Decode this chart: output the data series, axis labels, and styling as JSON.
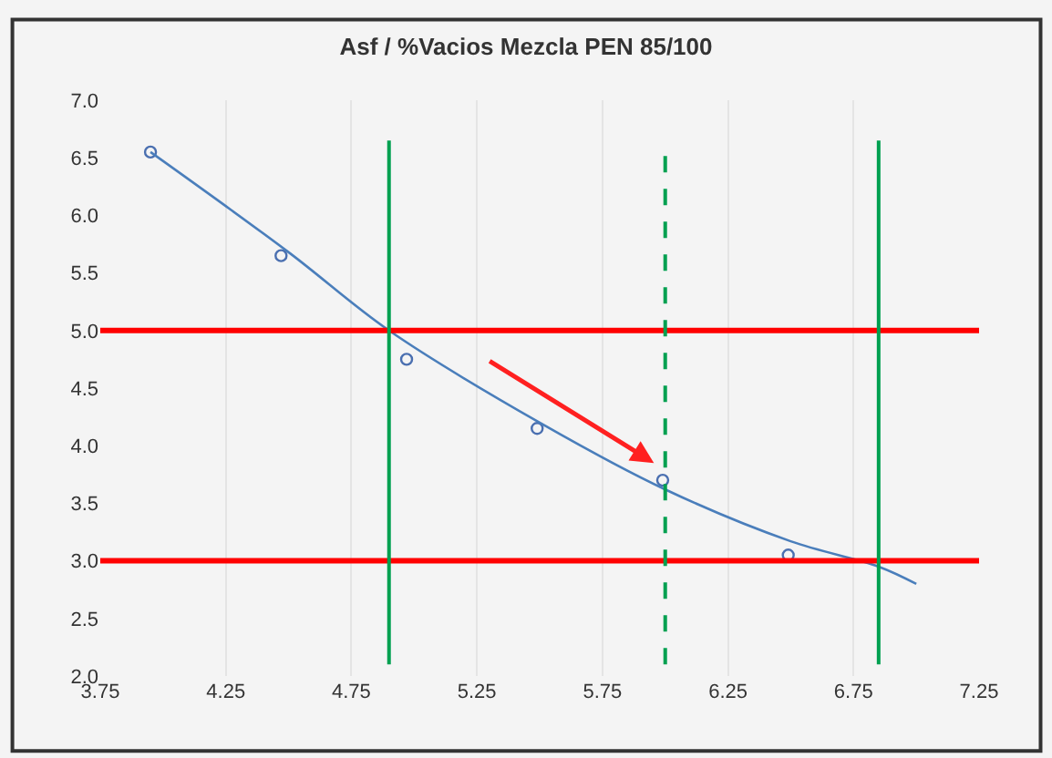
{
  "chart_data": {
    "type": "scatter",
    "title": "Asf / %Vacios Mezcla PEN 85/100",
    "grid": "x",
    "xlim": [
      3.75,
      7.25
    ],
    "xticks": [
      3.75,
      4.25,
      4.75,
      5.25,
      5.75,
      6.25,
      6.75,
      7.25
    ],
    "ylim": [
      2.0,
      7.0
    ],
    "yticks": [
      {
        "value": 2,
        "label": "2.0"
      },
      2.5,
      {
        "value": 3,
        "label": "3.0"
      },
      3.5,
      {
        "value": 4,
        "label": "4.0"
      },
      4.5,
      {
        "value": 5,
        "label": "5.0"
      },
      5.5,
      {
        "value": 6,
        "label": "6.0"
      },
      6.5,
      {
        "value": 7,
        "label": "7.0"
      }
    ],
    "series": [
      {
        "marker": "circle",
        "color": "#4a6fb0",
        "x": [
          3.95,
          4.47,
          4.97,
          5.49,
          5.99,
          6.49
        ],
        "values": [
          6.55,
          5.65,
          4.75,
          4.15,
          3.7,
          3.05
        ]
      },
      {
        "type": "line",
        "marker": "none",
        "color": "#4a7ebb",
        "x": [
          3.95,
          4.5,
          4.9,
          5.5,
          6.0,
          6.5,
          6.85,
          7.0
        ],
        "values": [
          6.55,
          5.68,
          5.0,
          4.2,
          3.62,
          3.17,
          2.95,
          2.8
        ]
      }
    ],
    "ref_lines": [
      {
        "axis": "y",
        "value": 5.0,
        "color": "#ff0000",
        "line_style": "solid"
      },
      {
        "axis": "y",
        "value": 3.0,
        "color": "#ff0000",
        "line_style": "solid"
      },
      {
        "axis": "x",
        "value": 4.9,
        "color": "#00a050",
        "line_style": "solid"
      },
      {
        "axis": "x",
        "value": 6.0,
        "color": "#00a050",
        "line_style": "dashed"
      },
      {
        "axis": "x",
        "value": 6.85,
        "color": "#00a050",
        "line_style": "solid"
      }
    ]
  }
}
